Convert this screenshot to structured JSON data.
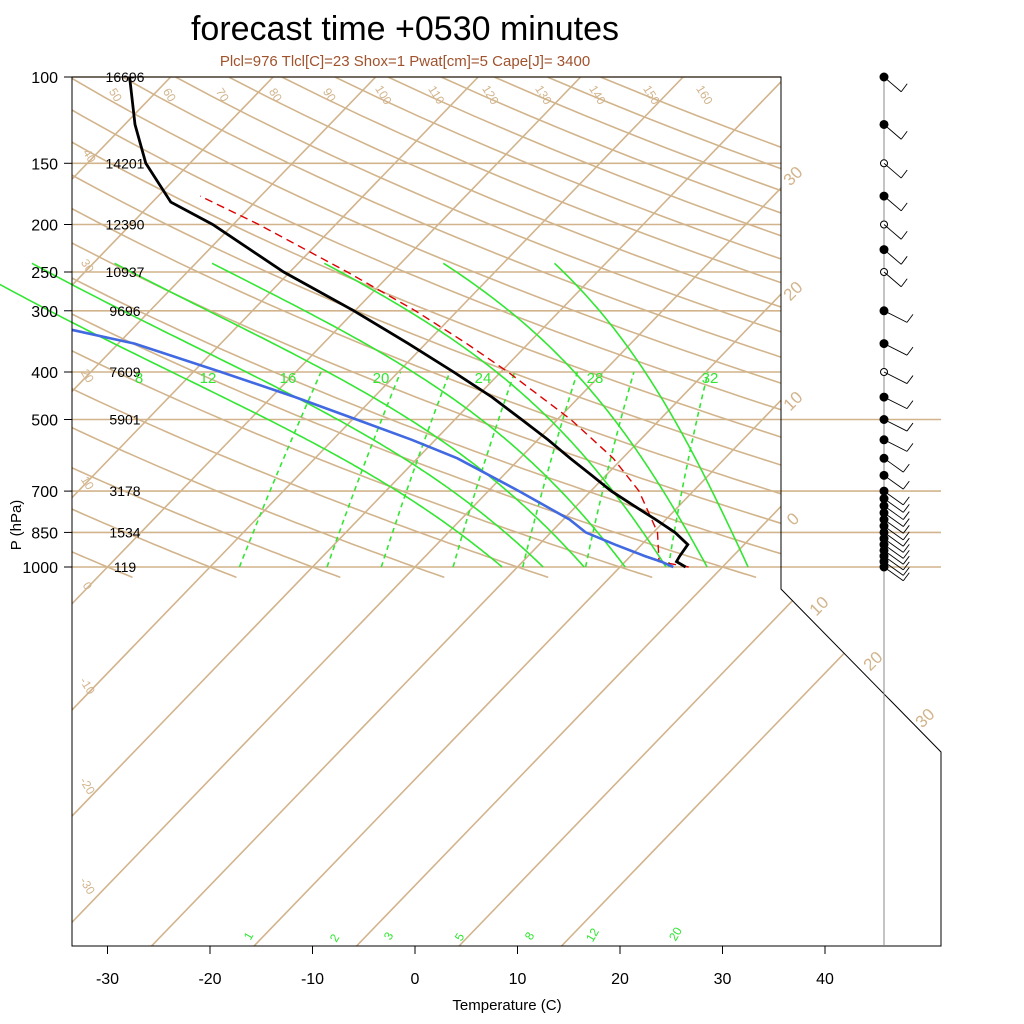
{
  "title": "forecast time +0530 minutes",
  "subtitle": "Plcl=976 Tlcl[C]=23 Shox=1 Pwat[cm]=5 Cape[J]= 3400",
  "colors": {
    "grid": "#d2b48c",
    "temperature": "#000000",
    "dewpoint": "#4169e1",
    "moist_adiabat": "#32e632",
    "mixing_ratio": "#32e632",
    "parcel": "#dd0000",
    "wind_barb": "#000000",
    "subtitle": "#a0522d"
  },
  "chart_data": {
    "type": "skew-T log-P",
    "title": "forecast time +0530 minutes",
    "subtitle": "Plcl=976 Tlcl[C]=23 Shox=1 Pwat[cm]=5 Cape[J]= 3400",
    "xlabel": "Temperature (C)",
    "ylabel": "P (hPa)",
    "xticks": [
      -30,
      -20,
      -10,
      0,
      10,
      20,
      30,
      40
    ],
    "xlim": [
      -34,
      51
    ],
    "yticks": [
      100,
      150,
      200,
      250,
      300,
      400,
      500,
      700,
      850,
      1000
    ],
    "ylim": [
      100,
      1050
    ],
    "log_pressure_axis": true,
    "heights_m": [
      {
        "p": 100,
        "z": "16696"
      },
      {
        "p": 150,
        "z": "14201"
      },
      {
        "p": 200,
        "z": "12390"
      },
      {
        "p": 250,
        "z": "10937"
      },
      {
        "p": 300,
        "z": "9696"
      },
      {
        "p": 400,
        "z": "7609"
      },
      {
        "p": 500,
        "z": "5901"
      },
      {
        "p": 700,
        "z": "3178"
      },
      {
        "p": 850,
        "z": "1534"
      },
      {
        "p": 1000,
        "z": "119"
      }
    ],
    "temperature_profile": [
      {
        "p": 1000,
        "t": 26.4
      },
      {
        "p": 975,
        "t": 25.0
      },
      {
        "p": 950,
        "t": 24.8
      },
      {
        "p": 900,
        "t": 24.5
      },
      {
        "p": 850,
        "t": 22.1
      },
      {
        "p": 800,
        "t": 19.0
      },
      {
        "p": 750,
        "t": 15.6
      },
      {
        "p": 700,
        "t": 12.0
      },
      {
        "p": 650,
        "t": 8.6
      },
      {
        "p": 600,
        "t": 4.9
      },
      {
        "p": 550,
        "t": 1.0
      },
      {
        "p": 500,
        "t": -3.5
      },
      {
        "p": 450,
        "t": -8.5
      },
      {
        "p": 400,
        "t": -14.6
      },
      {
        "p": 350,
        "t": -21.7
      },
      {
        "p": 300,
        "t": -30.1
      },
      {
        "p": 250,
        "t": -40.6
      },
      {
        "p": 200,
        "t": -52.0
      },
      {
        "p": 180,
        "t": -58.2
      },
      {
        "p": 150,
        "t": -64.3
      },
      {
        "p": 125,
        "t": -69.0
      },
      {
        "p": 100,
        "t": -74.0
      }
    ],
    "dewpoint_profile": [
      {
        "p": 1000,
        "t": 25.2
      },
      {
        "p": 975,
        "t": 23.5
      },
      {
        "p": 950,
        "t": 21.4
      },
      {
        "p": 900,
        "t": 17.4
      },
      {
        "p": 850,
        "t": 13.4
      },
      {
        "p": 800,
        "t": 10.6
      },
      {
        "p": 700,
        "t": 3.0
      },
      {
        "p": 600,
        "t": -6.1
      },
      {
        "p": 550,
        "t": -12.3
      },
      {
        "p": 500,
        "t": -19.6
      },
      {
        "p": 450,
        "t": -27.7
      },
      {
        "p": 400,
        "t": -37.3
      },
      {
        "p": 350,
        "t": -48.4
      },
      {
        "p": 320,
        "t": -58.7
      },
      {
        "p": 300,
        "t": -66.7
      },
      {
        "p": 285,
        "t": -73.3
      },
      {
        "p": 250,
        "t": -68.6
      },
      {
        "p": 230,
        "t": -70.0
      },
      {
        "p": 180,
        "t": -75.3
      },
      {
        "p": 150,
        "t": -76.0
      },
      {
        "p": 100,
        "t": -86.0
      }
    ],
    "parcel_profile": [
      {
        "p": 1000,
        "t": 26.7
      },
      {
        "p": 975,
        "t": 23.3
      },
      {
        "p": 850,
        "t": 20.4
      },
      {
        "p": 700,
        "t": 14.7
      },
      {
        "p": 600,
        "t": 9.1
      },
      {
        "p": 500,
        "t": 1.3
      },
      {
        "p": 400,
        "t": -9.3
      },
      {
        "p": 350,
        "t": -16.0
      },
      {
        "p": 300,
        "t": -24.1
      },
      {
        "p": 250,
        "t": -34.4
      },
      {
        "p": 200,
        "t": -47.5
      },
      {
        "p": 175,
        "t": -55.9
      }
    ],
    "dry_adiabat_labels": [
      "50",
      "60",
      "70",
      "80",
      "90",
      "100",
      "110",
      "120",
      "130",
      "140",
      "150",
      "160",
      "40",
      "30",
      "20",
      "10",
      "0",
      "-10",
      "-20",
      "-30"
    ],
    "moist_adiabat_labels": [
      "8",
      "12",
      "16",
      "20",
      "24",
      "28",
      "32"
    ],
    "mixing_ratio_labels": [
      "1",
      "2",
      "3",
      "5",
      "8",
      "12",
      "20"
    ],
    "isotherm_right_labels": [
      "30",
      "20",
      "10",
      "0",
      "10",
      "20",
      "30"
    ],
    "wind_levels_hpa": [
      100,
      125,
      150,
      175,
      200,
      225,
      250,
      300,
      350,
      400,
      450,
      500,
      550,
      600,
      650,
      700,
      725,
      750,
      775,
      800,
      825,
      850,
      875,
      900,
      925,
      950,
      975,
      1000
    ],
    "grid": true
  }
}
